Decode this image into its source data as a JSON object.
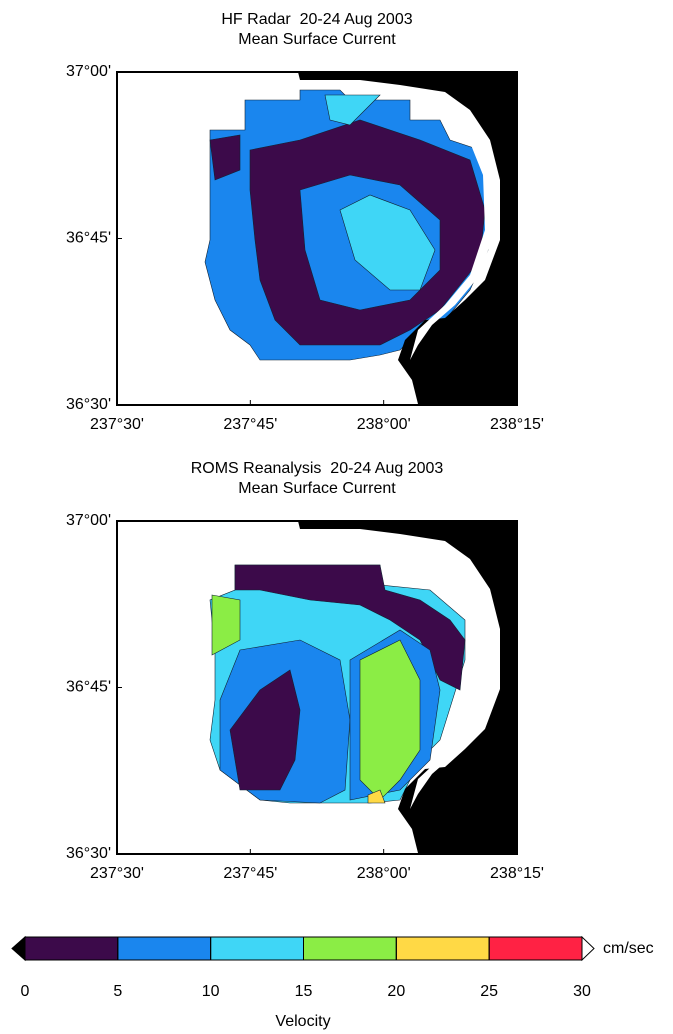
{
  "chart_data": [
    {
      "type": "map",
      "title": "HF Radar  20-24 Aug 2003",
      "subtitle": "Mean Surface Current",
      "xlim": [
        237.5,
        238.25
      ],
      "ylim": [
        36.5,
        37.0
      ],
      "xticks": [
        {
          "value": 237.5,
          "label": "237°30'"
        },
        {
          "value": 237.75,
          "label": "237°45'"
        },
        {
          "value": 238.0,
          "label": "238°00'"
        },
        {
          "value": 238.25,
          "label": "238°15'"
        }
      ],
      "yticks": [
        {
          "value": 36.5,
          "label": "36°30'"
        },
        {
          "value": 36.75,
          "label": "36°45'"
        },
        {
          "value": 37.0,
          "label": "37°00'"
        }
      ]
    },
    {
      "type": "map",
      "title": "ROMS Reanalysis  20-24 Aug 2003",
      "subtitle": "Mean Surface Current",
      "xlim": [
        237.5,
        238.25
      ],
      "ylim": [
        36.5,
        37.0
      ],
      "xticks": [
        {
          "value": 237.5,
          "label": "237°30'"
        },
        {
          "value": 237.75,
          "label": "237°45'"
        },
        {
          "value": 238.0,
          "label": "238°00'"
        },
        {
          "value": 238.25,
          "label": "238°15'"
        }
      ],
      "yticks": [
        {
          "value": 36.5,
          "label": "36°30'"
        },
        {
          "value": 36.75,
          "label": "36°45'"
        },
        {
          "value": 37.0,
          "label": "37°00'"
        }
      ]
    }
  ],
  "colorbar": {
    "label": "Velocity",
    "unit": "cm/sec",
    "lim": [
      0,
      30
    ],
    "ticks": [
      0,
      5,
      10,
      15,
      20,
      25,
      30
    ],
    "colors": [
      "#3c0a4a",
      "#1a86ee",
      "#3fd6f6",
      "#8bed45",
      "#ffd945",
      "#ff2244"
    ]
  }
}
